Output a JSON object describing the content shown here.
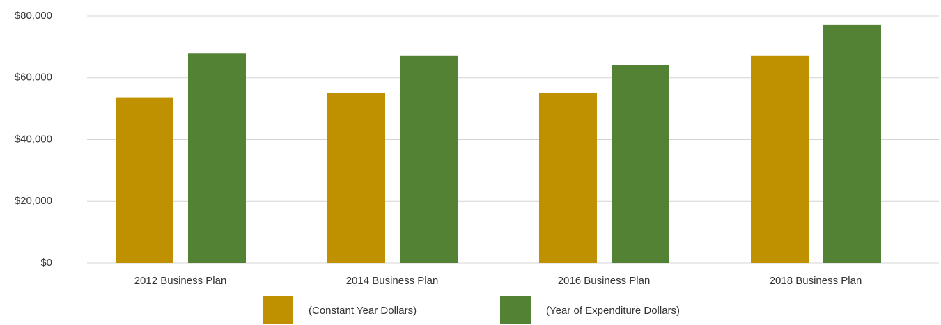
{
  "chart_data": {
    "type": "bar",
    "categories": [
      "2012 Business Plan",
      "2014 Business Plan",
      "2016 Business Plan",
      "2018 Business Plan"
    ],
    "series": [
      {
        "name": "(Constant Year Dollars)",
        "color": "#bf9000",
        "values": [
          53500,
          55000,
          55000,
          67200
        ]
      },
      {
        "name": "(Year of Expenditure Dollars)",
        "color": "#548235",
        "values": [
          68000,
          67200,
          64000,
          77100
        ]
      }
    ],
    "ylim": [
      0,
      80000
    ],
    "yticks": [
      {
        "value": 0,
        "label": "$0"
      },
      {
        "value": 20000,
        "label": "$20,000"
      },
      {
        "value": 40000,
        "label": "$40,000"
      },
      {
        "value": 60000,
        "label": "$60,000"
      },
      {
        "value": 80000,
        "label": "$80,000"
      }
    ],
    "grid": true,
    "legend": "bottom"
  }
}
